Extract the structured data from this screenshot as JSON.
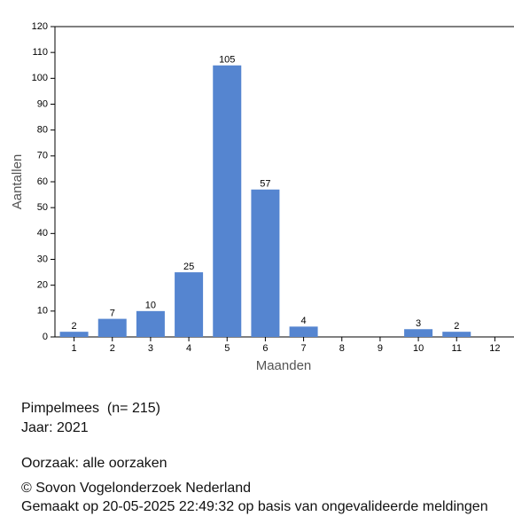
{
  "chart_data": {
    "type": "bar",
    "x_label": "Maanden",
    "y_label": "Aantallen",
    "categories": [
      "1",
      "2",
      "3",
      "4",
      "5",
      "6",
      "7",
      "8",
      "9",
      "10",
      "11",
      "12"
    ],
    "values": [
      2,
      7,
      10,
      25,
      105,
      57,
      4,
      null,
      null,
      3,
      2,
      null
    ],
    "color": "#5585d0",
    "ylim": [
      0,
      120
    ],
    "yticks": [
      0,
      10,
      20,
      30,
      40,
      50,
      60,
      70,
      80,
      90,
      100,
      110,
      120
    ]
  },
  "footer": {
    "species": "Pimpelmees  (n= 215)",
    "year": "Jaar: 2021",
    "cause": "Oorzaak: alle oorzaken",
    "copyright": "© Sovon Vogelonderzoek Nederland",
    "made": "Gemaakt op 20-05-2025 22:49:32 op basis van ongevalideerde meldingen"
  }
}
